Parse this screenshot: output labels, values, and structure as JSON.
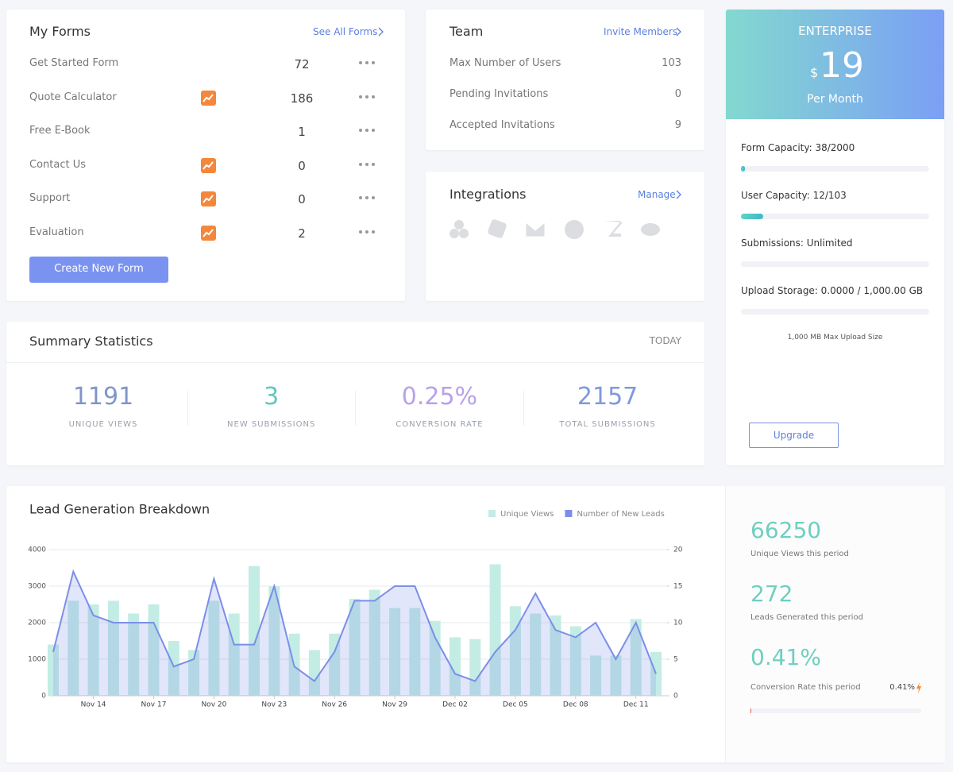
{
  "my_forms": {
    "title": "My Forms",
    "link": "See All Forms",
    "rows": [
      {
        "name": "Get Started Form",
        "count": 72,
        "trending": false
      },
      {
        "name": "Quote Calculator",
        "count": 186,
        "trending": true
      },
      {
        "name": "Free E-Book",
        "count": 1,
        "trending": false
      },
      {
        "name": "Contact Us",
        "count": 0,
        "trending": true
      },
      {
        "name": "Support",
        "count": 0,
        "trending": true
      },
      {
        "name": "Evaluation",
        "count": 2,
        "trending": true
      }
    ],
    "button": "Create New Form"
  },
  "team": {
    "title": "Team",
    "link": "Invite Members",
    "rows": [
      {
        "label": "Max Number of Users",
        "value": 103
      },
      {
        "label": "Pending Invitations",
        "value": 0
      },
      {
        "label": "Accepted Invitations",
        "value": 9
      }
    ]
  },
  "integrations": {
    "title": "Integrations",
    "link": "Manage"
  },
  "plan": {
    "name": "ENTERPRISE",
    "currency": "$",
    "price": 19,
    "period": "Per Month",
    "capacities": [
      "Form Capacity: 38/2000",
      "User Capacity: 12/103",
      "Submissions: Unlimited",
      "Upload Storage: 0.0000 / 1,000.00 GB"
    ],
    "note": "1,000 MB Max Upload Size",
    "button": "Upgrade"
  },
  "summary": {
    "title": "Summary Statistics",
    "period": "TODAY",
    "stats": [
      {
        "value": 1191,
        "caption": "UNIQUE VIEWS",
        "color": "#8096c8"
      },
      {
        "value": 3,
        "caption": "NEW SUBMISSIONS",
        "color": "#62c9b9"
      },
      {
        "value": 0.25,
        "value_label": "0.25%",
        "caption": "CONVERSION RATE",
        "color": "#b8a2ea"
      },
      {
        "value": 2157,
        "caption": "TOTAL SUBMISSIONS",
        "color": "#7e99de"
      }
    ]
  },
  "chart_data": {
    "type": "bar",
    "title": "Lead Generation Breakdown",
    "categories": [
      null,
      null,
      "Nov 14",
      null,
      null,
      "Nov 17",
      null,
      null,
      "Nov 20",
      null,
      null,
      "Nov 23",
      null,
      null,
      "Nov 26",
      null,
      null,
      "Nov 29",
      null,
      null,
      "Dec 02",
      null,
      null,
      "Dec 05",
      null,
      null,
      "Dec 08",
      null,
      null,
      "Dec 11",
      null
    ],
    "series": [
      {
        "name": "Unique Views",
        "color": "#c3ece5",
        "values": [
          1400,
          2600,
          2500,
          2600,
          2250,
          2500,
          1500,
          1250,
          2600,
          2250,
          3550,
          3000,
          1700,
          1250,
          1700,
          2650,
          2900,
          2400,
          2400,
          2050,
          1600,
          1550,
          3600,
          2450,
          2250,
          2200,
          1900,
          1100,
          1100,
          2100,
          1200
        ]
      },
      {
        "name": "Number of New Leads",
        "color": "#7b8fe8",
        "type": "line",
        "axis": "y2",
        "values": [
          6,
          17,
          11,
          10,
          10,
          10,
          4,
          5,
          16,
          7,
          7,
          15,
          4,
          2,
          6,
          13,
          13,
          15,
          15,
          8,
          3,
          2,
          6,
          9,
          14,
          9,
          8,
          10,
          5,
          10,
          3
        ]
      }
    ],
    "ylim": [
      0,
      4000
    ],
    "yticks": [
      0,
      1000,
      2000,
      3000,
      4000
    ],
    "y2lim": [
      0,
      20
    ],
    "y2ticks": [
      0,
      5,
      10,
      15,
      20
    ],
    "grid": true,
    "legend": "top-right"
  },
  "period_stats": [
    {
      "value": 66250,
      "caption": "Unique Views this period"
    },
    {
      "value": 272,
      "caption": "Leads Generated this period"
    },
    {
      "value": 0.41,
      "value_label": "0.41%",
      "caption": "Conversion Rate this period"
    }
  ]
}
